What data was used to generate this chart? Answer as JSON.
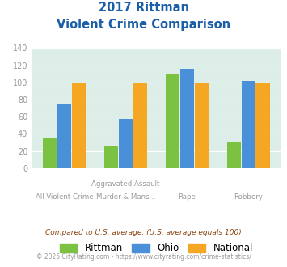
{
  "title_line1": "2017 Rittman",
  "title_line2": "Violent Crime Comparison",
  "cat_labels_top": [
    "",
    "Aggravated Assault",
    "",
    ""
  ],
  "cat_labels_bot": [
    "All Violent Crime",
    "Murder & Mans...",
    "Rape",
    "Robbery"
  ],
  "rittman": [
    35,
    25,
    110,
    31
  ],
  "ohio": [
    75,
    57,
    116,
    102
  ],
  "national": [
    100,
    100,
    100,
    100
  ],
  "rittman_color": "#7bc142",
  "ohio_color": "#4a90d9",
  "national_color": "#f5a623",
  "ylim": [
    0,
    140
  ],
  "yticks": [
    0,
    20,
    40,
    60,
    80,
    100,
    120,
    140
  ],
  "plot_bg": "#ddeee8",
  "title_color": "#1a5fa8",
  "footnote1": "Compared to U.S. average. (U.S. average equals 100)",
  "footnote2": "© 2025 CityRating.com - https://www.cityrating.com/crime-statistics/",
  "footnote1_color": "#8b4513",
  "footnote2_color": "#999999",
  "xtick_color": "#999999"
}
